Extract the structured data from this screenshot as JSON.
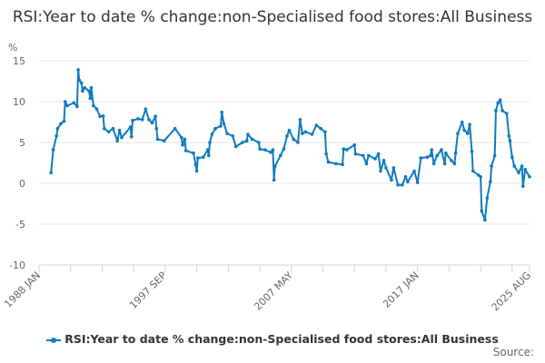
{
  "chart_data": {
    "type": "line",
    "title": "RSI:Year to date % change:non-Specialised food stores:All Business",
    "ylabel": "%",
    "xlabel": "",
    "ylim": [
      -10,
      15
    ],
    "yticks": [
      "15",
      "10",
      "5",
      "0",
      "-5",
      "-10"
    ],
    "xlim": [
      "1988-01",
      "2025-08"
    ],
    "xtick_labels": [
      "1988 JAN",
      "1997 SEP",
      "2007 MAY",
      "2017 JAN",
      "2025 AUG"
    ],
    "grid": true,
    "legend_position": "bottom",
    "color": "#0e7bbf",
    "series": [
      {
        "name": "RSI:Year to date % change:non-Specialised food stores:All Business",
        "points": [
          [
            "1988-12",
            1.3
          ],
          [
            "1989-02",
            4.1
          ],
          [
            "1989-05",
            5.8
          ],
          [
            "1989-06",
            6.7
          ],
          [
            "1989-09",
            7.3
          ],
          [
            "1989-12",
            7.6
          ],
          [
            "1990-01",
            10.0
          ],
          [
            "1990-03",
            9.5
          ],
          [
            "1990-09",
            9.85
          ],
          [
            "1990-12",
            9.4
          ],
          [
            "1991-01",
            13.9
          ],
          [
            "1991-02",
            12.6
          ],
          [
            "1991-04",
            12.3
          ],
          [
            "1991-05",
            11.3
          ],
          [
            "1991-07",
            11.7
          ],
          [
            "1991-11",
            11.3
          ],
          [
            "1991-12",
            10.4
          ],
          [
            "1992-01",
            11.7
          ],
          [
            "1992-03",
            9.5
          ],
          [
            "1992-06",
            9.1
          ],
          [
            "1992-09",
            8.2
          ],
          [
            "1992-12",
            8.25
          ],
          [
            "1993-01",
            6.7
          ],
          [
            "1993-05",
            6.3
          ],
          [
            "1993-09",
            6.7
          ],
          [
            "1994-01",
            5.2
          ],
          [
            "1994-03",
            6.5
          ],
          [
            "1994-05",
            5.6
          ],
          [
            "1995-01",
            6.9
          ],
          [
            "1995-02",
            5.7
          ],
          [
            "1995-03",
            7.7
          ],
          [
            "1995-08",
            7.9
          ],
          [
            "1995-12",
            7.8
          ],
          [
            "1996-03",
            9.1
          ],
          [
            "1996-06",
            7.8
          ],
          [
            "1996-09",
            7.4
          ],
          [
            "1996-12",
            8.2
          ],
          [
            "1997-01",
            6.7
          ],
          [
            "1997-02",
            5.4
          ],
          [
            "1997-08",
            5.2
          ],
          [
            "1998-06",
            6.7
          ],
          [
            "1998-12",
            5.6
          ],
          [
            "1999-01",
            4.7
          ],
          [
            "1999-03",
            5.4
          ],
          [
            "1999-04",
            4.0
          ],
          [
            "1999-11",
            3.7
          ],
          [
            "2000-01",
            2.3
          ],
          [
            "2000-02",
            1.5
          ],
          [
            "2000-03",
            3.1
          ],
          [
            "2000-08",
            3.2
          ],
          [
            "2000-12",
            4.1
          ],
          [
            "2001-01",
            3.4
          ],
          [
            "2001-02",
            5.0
          ],
          [
            "2001-04",
            6.0
          ],
          [
            "2001-07",
            6.7
          ],
          [
            "2001-12",
            7.0
          ],
          [
            "2002-01",
            8.7
          ],
          [
            "2002-03",
            7.3
          ],
          [
            "2002-06",
            6.1
          ],
          [
            "2002-11",
            5.8
          ],
          [
            "2003-02",
            4.5
          ],
          [
            "2003-08",
            5.0
          ],
          [
            "2003-12",
            5.2
          ],
          [
            "2004-01",
            6.0
          ],
          [
            "2004-05",
            5.4
          ],
          [
            "2004-11",
            5.0
          ],
          [
            "2004-12",
            4.2
          ],
          [
            "2005-05",
            4.1
          ],
          [
            "2005-10",
            3.8
          ],
          [
            "2005-12",
            4.1
          ],
          [
            "2006-01",
            0.4
          ],
          [
            "2006-02",
            2.1
          ],
          [
            "2006-07",
            3.4
          ],
          [
            "2006-10",
            4.2
          ],
          [
            "2007-01",
            5.8
          ],
          [
            "2007-03",
            6.5
          ],
          [
            "2007-07",
            5.4
          ],
          [
            "2007-11",
            5.0
          ],
          [
            "2008-01",
            7.8
          ],
          [
            "2008-03",
            6.1
          ],
          [
            "2008-06",
            6.3
          ],
          [
            "2008-12",
            6.0
          ],
          [
            "2009-04",
            7.1
          ],
          [
            "2009-08",
            6.7
          ],
          [
            "2009-12",
            6.3
          ],
          [
            "2010-01",
            3.6
          ],
          [
            "2010-03",
            2.6
          ],
          [
            "2010-10",
            2.4
          ],
          [
            "2011-04",
            2.3
          ],
          [
            "2011-05",
            4.2
          ],
          [
            "2011-08",
            4.1
          ],
          [
            "2012-03",
            4.7
          ],
          [
            "2012-04",
            3.6
          ],
          [
            "2012-11",
            3.4
          ],
          [
            "2013-02",
            2.4
          ],
          [
            "2013-04",
            3.4
          ],
          [
            "2013-10",
            3.0
          ],
          [
            "2014-01",
            3.6
          ],
          [
            "2014-03",
            1.5
          ],
          [
            "2014-06",
            2.8
          ],
          [
            "2014-08",
            1.9
          ],
          [
            "2015-01",
            0.4
          ],
          [
            "2015-03",
            1.9
          ],
          [
            "2015-07",
            -0.2
          ],
          [
            "2015-11",
            -0.2
          ],
          [
            "2016-02",
            0.8
          ],
          [
            "2016-04",
            0.2
          ],
          [
            "2016-10",
            1.5
          ],
          [
            "2017-01",
            0.1
          ],
          [
            "2017-04",
            3.1
          ],
          [
            "2017-10",
            3.2
          ],
          [
            "2018-01",
            3.4
          ],
          [
            "2018-02",
            4.1
          ],
          [
            "2018-04",
            2.4
          ],
          [
            "2018-07",
            3.4
          ],
          [
            "2018-11",
            4.1
          ],
          [
            "2019-02",
            2.4
          ],
          [
            "2019-03",
            3.7
          ],
          [
            "2019-08",
            2.8
          ],
          [
            "2019-11",
            2.4
          ],
          [
            "2019-12",
            3.7
          ],
          [
            "2020-02",
            6.1
          ],
          [
            "2020-06",
            7.5
          ],
          [
            "2020-08",
            6.5
          ],
          [
            "2020-11",
            6.1
          ],
          [
            "2021-01",
            7.2
          ],
          [
            "2021-03",
            3.9
          ],
          [
            "2021-04",
            1.5
          ],
          [
            "2021-09",
            1.0
          ],
          [
            "2021-11",
            0.8
          ],
          [
            "2021-12",
            -3.4
          ],
          [
            "2022-03",
            -4.5
          ],
          [
            "2022-05",
            -1.8
          ],
          [
            "2022-08",
            0.2
          ],
          [
            "2022-09",
            2.1
          ],
          [
            "2022-12",
            3.4
          ],
          [
            "2023-01",
            8.9
          ],
          [
            "2023-03",
            9.85
          ],
          [
            "2023-05",
            10.2
          ],
          [
            "2023-07",
            8.9
          ],
          [
            "2023-11",
            8.55
          ],
          [
            "2024-01",
            5.8
          ],
          [
            "2024-02",
            5.2
          ],
          [
            "2024-04",
            3.2
          ],
          [
            "2024-06",
            2.1
          ],
          [
            "2024-10",
            1.3
          ],
          [
            "2025-01",
            2.1
          ],
          [
            "2025-02",
            -0.35
          ],
          [
            "2025-04",
            1.7
          ],
          [
            "2025-08",
            0.8
          ]
        ]
      }
    ]
  },
  "source_label": "Source:"
}
